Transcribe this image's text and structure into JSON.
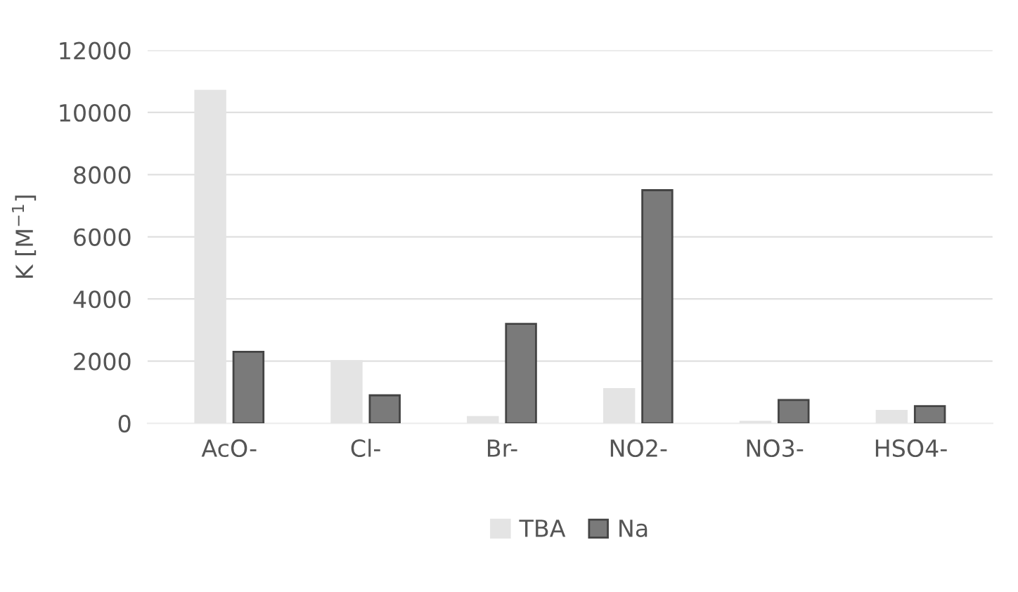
{
  "chart_data": {
    "type": "bar",
    "ylabel": "K [M$^{−1}$]",
    "categories": [
      "AcO-",
      "Cl-",
      "Br-",
      "NO2-",
      "NO3-",
      "HSO4-"
    ],
    "series": [
      {
        "name": "TBA",
        "color": "#e4e4e4",
        "values": [
          10700,
          2000,
          200,
          1100,
          50,
          400
        ]
      },
      {
        "name": "Na",
        "color": "#7a7a7a",
        "values": [
          2300,
          900,
          3200,
          7500,
          750,
          550
        ]
      }
    ],
    "ylim": [
      0,
      12000
    ],
    "yticks": [
      0,
      2000,
      4000,
      6000,
      8000,
      10000,
      12000
    ],
    "grid": "y",
    "legend": "bottom"
  }
}
